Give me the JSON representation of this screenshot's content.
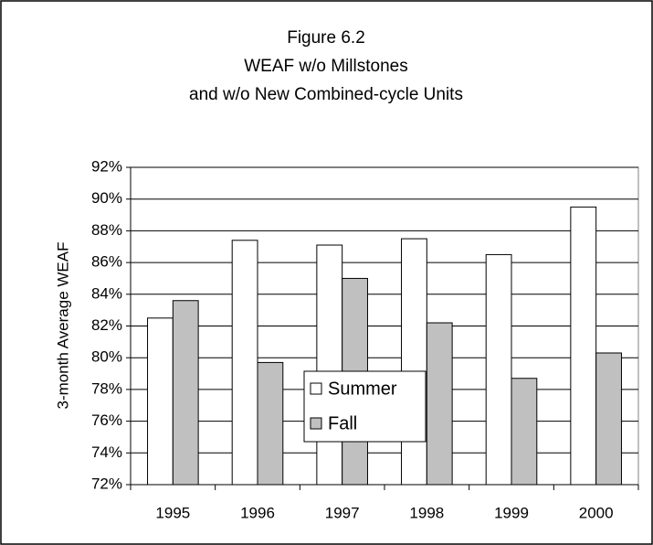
{
  "chart_data": {
    "type": "bar",
    "title": [
      "Figure 6.2",
      "WEAF w/o Millstones",
      "and w/o New Combined-cycle Units"
    ],
    "y_label": "3-month Average WEAF",
    "categories": [
      "1995",
      "1996",
      "1997",
      "1998",
      "1999",
      "2000"
    ],
    "series": [
      {
        "name": "Summer",
        "color": "#ffffff",
        "values": [
          82.5,
          87.4,
          87.1,
          87.5,
          86.5,
          89.5
        ]
      },
      {
        "name": "Fall",
        "color": "#c0c0c0",
        "values": [
          83.6,
          79.7,
          85.0,
          82.2,
          78.7,
          80.3
        ]
      }
    ],
    "ylim": [
      72,
      92
    ],
    "yticks": [
      {
        "value": 72,
        "label": "72%"
      },
      {
        "value": 74,
        "label": "74%"
      },
      {
        "value": 76,
        "label": "76%"
      },
      {
        "value": 78,
        "label": "78%"
      },
      {
        "value": 80,
        "label": "80%"
      },
      {
        "value": 82,
        "label": "82%"
      },
      {
        "value": 84,
        "label": "84%"
      },
      {
        "value": 86,
        "label": "86%"
      },
      {
        "value": 88,
        "label": "88%"
      },
      {
        "value": 90,
        "label": "90%"
      },
      {
        "value": 92,
        "label": "92%"
      }
    ],
    "grid": true
  }
}
